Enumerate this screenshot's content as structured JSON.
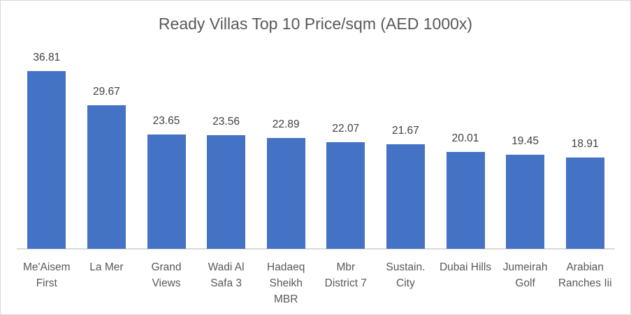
{
  "chart_data": {
    "type": "bar",
    "title": "Ready Villas Top 10 Price/sqm (AED 1000x)",
    "xlabel": "",
    "ylabel": "",
    "categories": [
      "Me'Aisem First",
      "La Mer",
      "Grand Views",
      "Wadi Al Safa 3",
      "Hadaeq Sheikh MBR",
      "Mbr District 7",
      "Sustain. City",
      "Dubai Hills",
      "Jumeirah Golf",
      "Arabian Ranches Iii"
    ],
    "category_lines": [
      [
        "Me'Aisem",
        "First"
      ],
      [
        "La Mer"
      ],
      [
        "Grand",
        "Views"
      ],
      [
        "Wadi Al",
        "Safa 3"
      ],
      [
        "Hadaeq",
        "Sheikh",
        "MBR"
      ],
      [
        "Mbr",
        "District 7"
      ],
      [
        "Sustain.",
        "City"
      ],
      [
        "Dubai Hills"
      ],
      [
        "Jumeirah",
        "Golf"
      ],
      [
        "Arabian",
        "Ranches Iii"
      ]
    ],
    "values": [
      36.81,
      29.67,
      23.65,
      23.56,
      22.89,
      22.07,
      21.67,
      20.01,
      19.45,
      18.91
    ],
    "value_labels": [
      "36.81",
      "29.67",
      "23.65",
      "23.56",
      "22.89",
      "22.07",
      "21.67",
      "20.01",
      "19.45",
      "18.91"
    ],
    "ylim": [
      0,
      40
    ],
    "grid": false,
    "legend": null,
    "data_labels": true,
    "bar_color": "#4472c4"
  }
}
